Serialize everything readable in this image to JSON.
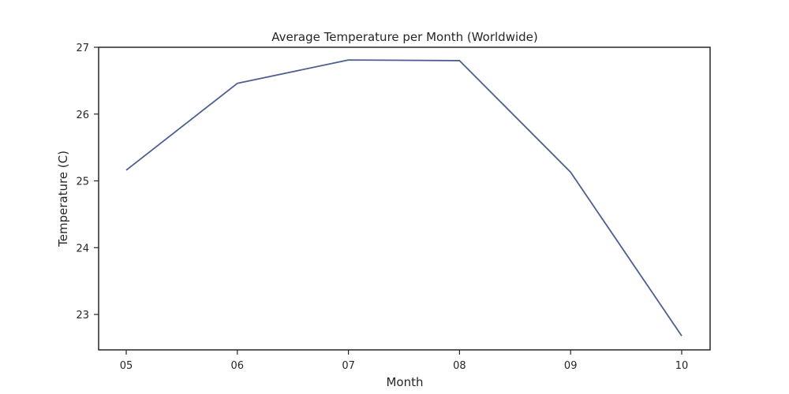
{
  "chart_data": {
    "type": "line",
    "title": "Average Temperature per Month (Worldwide)",
    "xlabel": "Month",
    "ylabel": "Temperature (C)",
    "categories": [
      "05",
      "06",
      "07",
      "08",
      "09",
      "10"
    ],
    "series": [
      {
        "values": [
          25.16,
          26.46,
          26.81,
          26.8,
          25.13,
          22.68
        ],
        "color": "#4c5f8f"
      }
    ],
    "yticks": [
      23,
      24,
      25,
      26,
      27
    ],
    "ylim": [
      22.47,
      27.0
    ],
    "grid": false,
    "legend": "none"
  }
}
